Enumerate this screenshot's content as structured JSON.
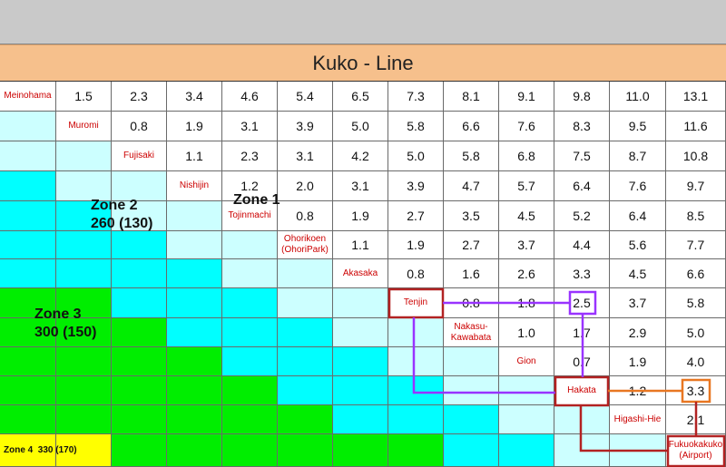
{
  "title": "Kuko - Line",
  "stations": [
    "Meinohama",
    "Muromi",
    "Fujisaki",
    "Nishijin",
    "Tojinmachi",
    "Ohorikoen\n(OhoriPark)",
    "Akasaka",
    "Tenjin",
    "Nakasu-\nKawabata",
    "Gion",
    "Hakata",
    "Higashi-Hie",
    "Fukuokakuko\n(Airport)"
  ],
  "distances": [
    [
      "1.5",
      "2.3",
      "3.4",
      "4.6",
      "5.4",
      "6.5",
      "7.3",
      "8.1",
      "9.1",
      "9.8",
      "11.0",
      "13.1"
    ],
    [
      "0.8",
      "1.9",
      "3.1",
      "3.9",
      "5.0",
      "5.8",
      "6.6",
      "7.6",
      "8.3",
      "9.5",
      "11.6"
    ],
    [
      "1.1",
      "2.3",
      "3.1",
      "4.2",
      "5.0",
      "5.8",
      "6.8",
      "7.5",
      "8.7",
      "10.8"
    ],
    [
      "1.2",
      "2.0",
      "3.1",
      "3.9",
      "4.7",
      "5.7",
      "6.4",
      "7.6",
      "9.7"
    ],
    [
      "0.8",
      "1.9",
      "2.7",
      "3.5",
      "4.5",
      "5.2",
      "6.4",
      "8.5"
    ],
    [
      "1.1",
      "1.9",
      "2.7",
      "3.7",
      "4.4",
      "5.6",
      "7.7"
    ],
    [
      "0.8",
      "1.6",
      "2.6",
      "3.3",
      "4.5",
      "6.6"
    ],
    [
      "0.8",
      "1.8",
      "2.5",
      "3.7",
      "5.8"
    ],
    [
      "1.0",
      "1.7",
      "2.9",
      "5.0"
    ],
    [
      "0.7",
      "1.9",
      "4.0"
    ],
    [
      "1.2",
      "3.3"
    ],
    [
      "2.1"
    ]
  ],
  "zones": {
    "zone1": "Zone 1",
    "zone2": "Zone 2\n260 (130)",
    "zone3": "Zone 3\n300 (150)",
    "zone4": "Zone 4  330 (170)"
  },
  "colors": {
    "zone1": "#ccffff",
    "zone2": "#00ffff",
    "zone3": "#00ee00",
    "zone4": "#ffff00",
    "header": "#f6c08c",
    "highlight_red": "#b22222",
    "highlight_purple": "#9933ff",
    "highlight_orange": "#e87722"
  }
}
